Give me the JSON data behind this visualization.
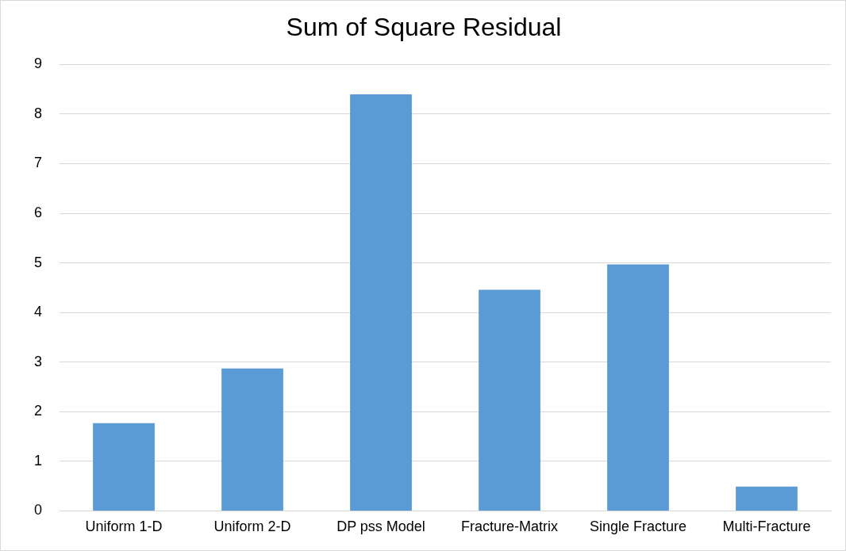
{
  "chart_data": {
    "type": "bar",
    "title": "Sum of Square Residual",
    "categories": [
      "Uniform 1-D",
      "Uniform 2-D",
      "DP pss Model",
      "Fracture-Matrix",
      "Single Fracture",
      "Multi-Fracture"
    ],
    "values": [
      1.77,
      2.87,
      8.4,
      4.46,
      4.97,
      0.49
    ],
    "color": "#5b9bd5",
    "ylim": [
      0,
      9
    ],
    "yticks": [
      0,
      1,
      2,
      3,
      4,
      5,
      6,
      7,
      8,
      9
    ],
    "grid": "y",
    "legend": false
  }
}
